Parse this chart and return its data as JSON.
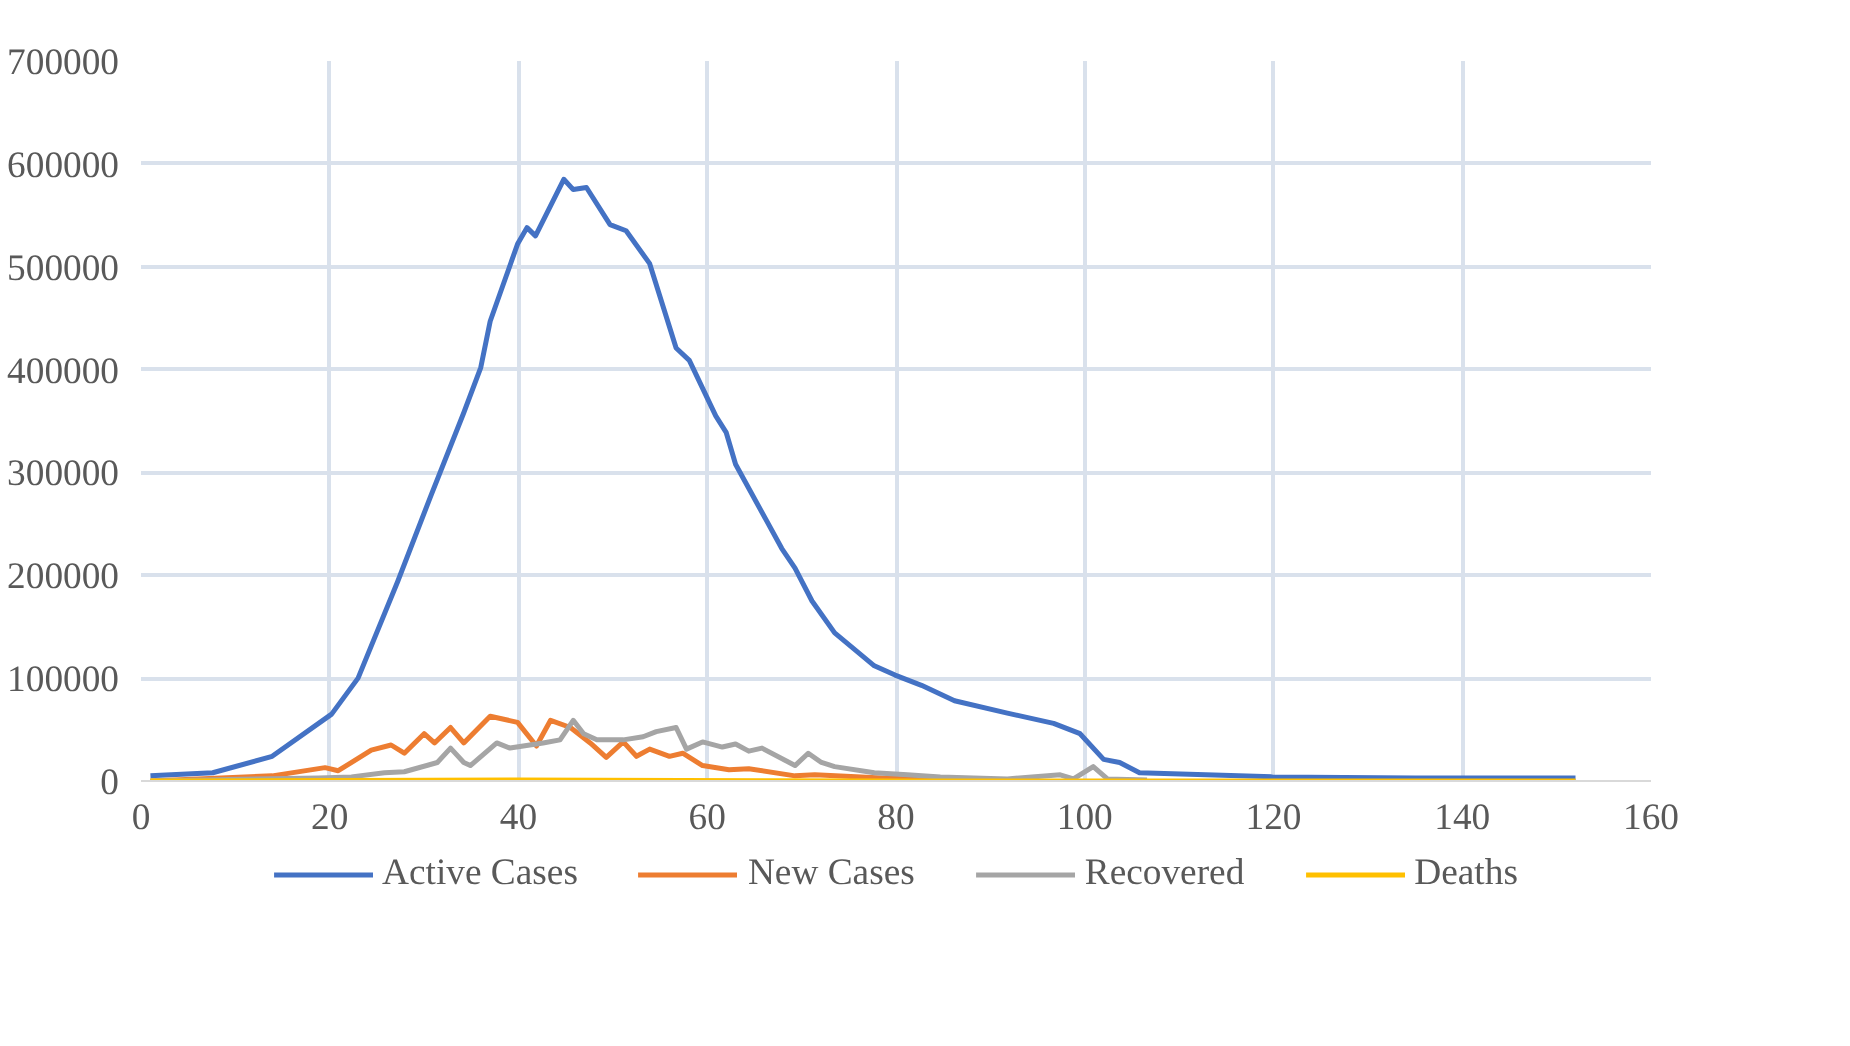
{
  "chart_data": {
    "type": "line",
    "xlim": [
      0,
      160
    ],
    "ylim": [
      0,
      700000
    ],
    "xticks": [
      0,
      20,
      40,
      60,
      80,
      100,
      120,
      140,
      160
    ],
    "yticks": [
      0,
      100000,
      200000,
      300000,
      400000,
      500000,
      600000,
      700000
    ],
    "grid": true,
    "legend": "bottom",
    "series": [
      {
        "name": "Active Cases",
        "color": "#4472c4",
        "x": [
          1,
          7.6,
          13.9,
          20.2,
          23,
          27.2,
          30.7,
          34.2,
          36,
          37,
          39.9,
          40.9,
          41.8,
          44.8,
          45.8,
          47.2,
          49.7,
          51.4,
          53.9,
          56.7,
          58.1,
          60.9,
          62,
          63,
          67.9,
          69.3,
          71.1,
          73.5,
          77.7,
          79.9,
          82.7,
          86.2,
          91.8,
          96.7,
          99.5,
          102,
          103.7,
          105.8,
          119.9,
          135,
          152
        ],
        "values": [
          5000,
          8000,
          24000,
          65000,
          100000,
          194000,
          277000,
          358000,
          402000,
          447000,
          522000,
          538000,
          530000,
          585000,
          575000,
          577000,
          541000,
          535000,
          503000,
          421000,
          409000,
          355000,
          339000,
          308000,
          226000,
          207000,
          175000,
          144000,
          112000,
          103000,
          93000,
          78000,
          66000,
          56000,
          46000,
          21000,
          18000,
          8000,
          4000,
          3000,
          3000
        ]
      },
      {
        "name": "New Cases",
        "color": "#ed7d31",
        "x": [
          1,
          13.9,
          19.5,
          20.9,
          24.4,
          26.5,
          27.9,
          30,
          31.1,
          32.8,
          34.2,
          37,
          39.9,
          41.9,
          43.4,
          45.5,
          47.6,
          49.3,
          51.1,
          52.5,
          53.9,
          56,
          57.4,
          59.5,
          62.3,
          64.4,
          69.3,
          71.4,
          78.5,
          85
        ],
        "values": [
          0,
          5000,
          13000,
          10000,
          30000,
          35000,
          27000,
          46000,
          37000,
          52000,
          37000,
          63000,
          57000,
          34000,
          59000,
          52000,
          37000,
          23000,
          38000,
          24000,
          31000,
          24000,
          27000,
          15000,
          11000,
          12000,
          5000,
          6000,
          3000,
          1000
        ]
      },
      {
        "name": "Recovered",
        "color": "#a5a5a5",
        "x": [
          1,
          18.8,
          22.3,
          25.8,
          27.9,
          31.4,
          32.8,
          34.2,
          34.9,
          37.7,
          39.1,
          42.6,
          44.4,
          45.8,
          46.9,
          48.3,
          51.1,
          53.2,
          54.6,
          56.7,
          57.8,
          59.5,
          61.6,
          63,
          64.4,
          65.8,
          69.3,
          70.7,
          72.1,
          73.5,
          77.7,
          81.2,
          84.7,
          91.8,
          97.4,
          98.8,
          100.9,
          102.4,
          106.6
        ],
        "values": [
          0,
          3000,
          4000,
          8000,
          9000,
          18000,
          32000,
          18000,
          15000,
          37000,
          32000,
          37000,
          40000,
          59000,
          46000,
          40000,
          40000,
          43000,
          48000,
          52000,
          31000,
          38000,
          33000,
          36000,
          29000,
          32000,
          15000,
          27000,
          18000,
          14000,
          8000,
          6000,
          4000,
          2000,
          6000,
          2000,
          14000,
          2000,
          1000
        ]
      },
      {
        "name": "Deaths",
        "color": "#ffc000",
        "x": [
          1,
          40,
          80,
          120,
          152
        ],
        "values": [
          0,
          1000,
          0,
          0,
          0
        ]
      }
    ]
  }
}
